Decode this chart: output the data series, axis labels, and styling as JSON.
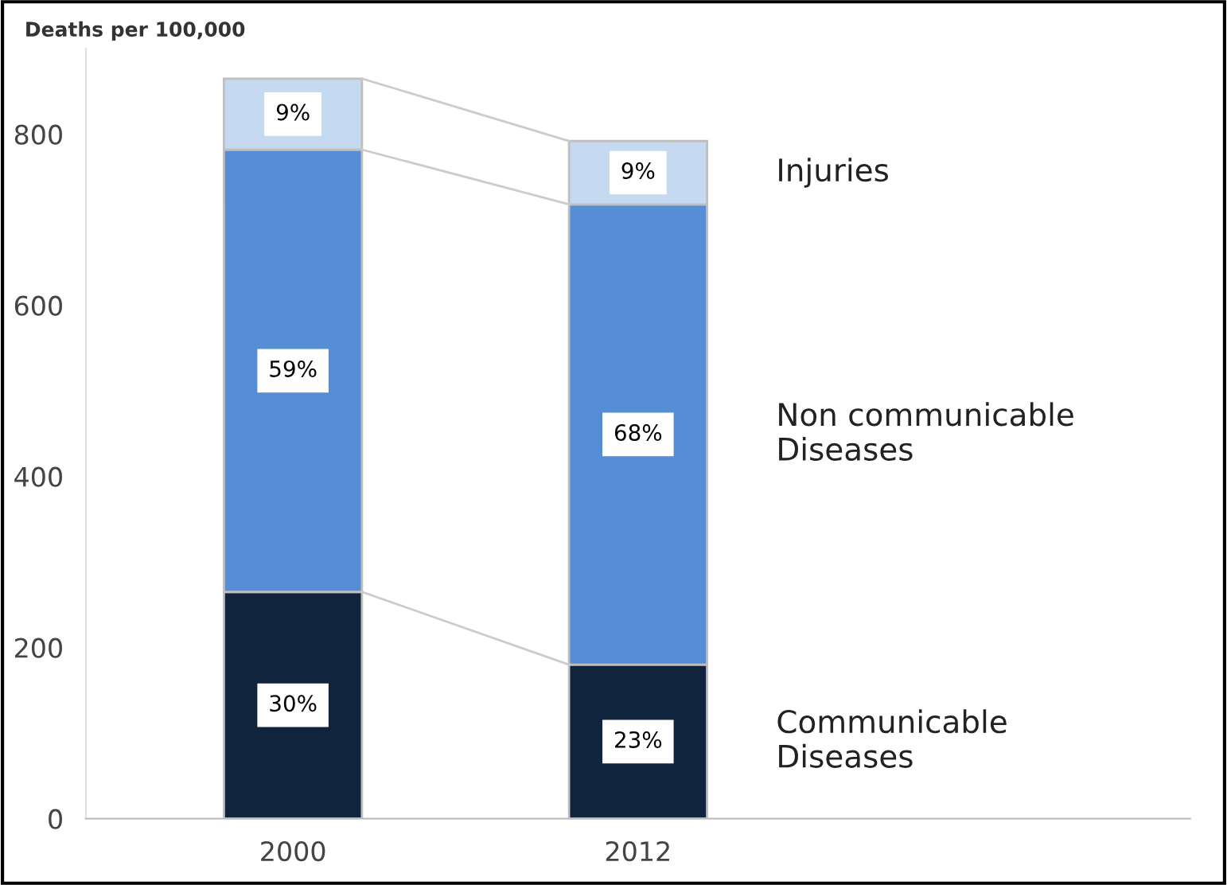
{
  "chart_data": {
    "type": "bar",
    "stacked": true,
    "ylabel": "Deaths per 100,000",
    "categories": [
      "2000",
      "2012"
    ],
    "series": [
      {
        "name": "Communicable\nDiseases",
        "color": "#10243e",
        "values": [
          265,
          180
        ]
      },
      {
        "name": "Non communicable\nDiseases",
        "color": "#558ed5",
        "values": [
          517,
          538
        ]
      },
      {
        "name": "Injuries",
        "color": "#c5d9f1",
        "values": [
          83,
          74
        ]
      }
    ],
    "annotations": [
      "30%",
      "59%",
      "9%",
      "23%",
      "68%",
      "9%"
    ],
    "ylim": [
      0,
      900
    ],
    "yticks": [
      0,
      200,
      400,
      600,
      800
    ],
    "grid": false,
    "legend": "right"
  }
}
